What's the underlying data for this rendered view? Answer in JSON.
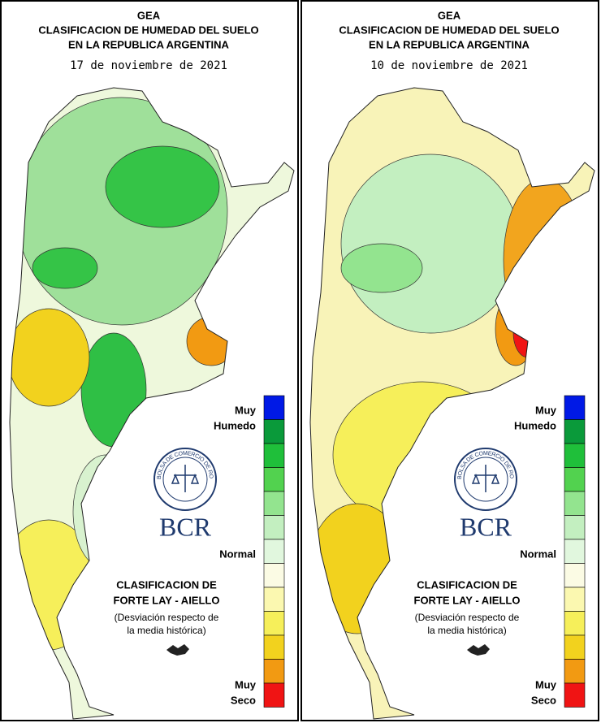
{
  "panels": [
    {
      "title": [
        "GEA",
        "CLASIFICACION DE HUMEDAD DEL SUELO",
        "EN LA REPUBLICA ARGENTINA"
      ],
      "date": "17 de noviembre de 2021",
      "legend": {
        "top": [
          "Muy",
          "Humedo"
        ],
        "middle": "Normal",
        "bottom": [
          "Muy",
          "Seco"
        ]
      },
      "logo": {
        "ring": "BOLSA DE COMERCIO DE ROSARIO",
        "name": "BCR"
      },
      "note": [
        "CLASIFICACION DE",
        "FORTE LAY - AIELLO",
        "(Desviación respecto de",
        "la media histórica)"
      ]
    },
    {
      "title": [
        "GEA",
        "CLASIFICACION DE HUMEDAD DEL SUELO",
        "EN LA REPUBLICA ARGENTINA"
      ],
      "date": "10 de noviembre de 2021",
      "legend": {
        "top": [
          "Muy",
          "Humedo"
        ],
        "middle": "Normal",
        "bottom": [
          "Muy",
          "Seco"
        ]
      },
      "logo": {
        "ring": "BOLSA DE COMERCIO DE ROSARIO",
        "name": "BCR"
      },
      "note": [
        "CLASIFICACION DE",
        "FORTE LAY - AIELLO",
        "(Desviación respecto de",
        "la media histórica)"
      ]
    }
  ]
}
